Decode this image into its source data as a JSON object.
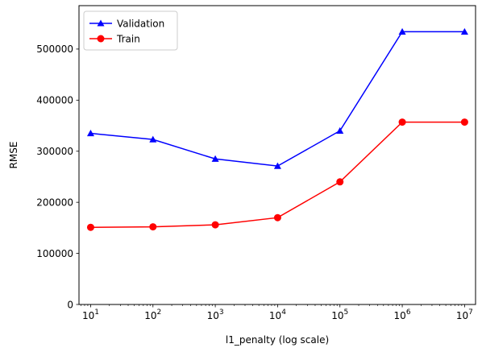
{
  "chart_data": {
    "type": "line",
    "x": [
      10,
      100,
      1000,
      10000,
      100000,
      1000000,
      10000000
    ],
    "x_scale": "log",
    "x_tick_values": [
      10,
      100,
      1000,
      10000,
      100000,
      1000000,
      10000000
    ],
    "x_tick_bases": [
      "10",
      "10",
      "10",
      "10",
      "10",
      "10",
      "10"
    ],
    "x_tick_exps": [
      "1",
      "2",
      "3",
      "4",
      "5",
      "6",
      "7"
    ],
    "y_ticks": [
      "0",
      "100000",
      "200000",
      "300000",
      "400000",
      "500000"
    ],
    "y_tick_values": [
      0,
      100000,
      200000,
      300000,
      400000,
      500000
    ],
    "ylim": [
      0,
      585000
    ],
    "xlim": [
      6.5,
      15000000
    ],
    "xlabel": "l1_penalty (log scale)",
    "ylabel": "RMSE",
    "grid": false,
    "legend_position": "top-left",
    "series": [
      {
        "name": "Validation",
        "color": "#0000ff",
        "marker": "triangle",
        "values": [
          335000,
          323000,
          285000,
          271000,
          340000,
          534000,
          534000
        ]
      },
      {
        "name": "Train",
        "color": "#ff0000",
        "marker": "circle",
        "values": [
          151000,
          152000,
          156000,
          170000,
          240000,
          357000,
          357000
        ]
      }
    ]
  }
}
